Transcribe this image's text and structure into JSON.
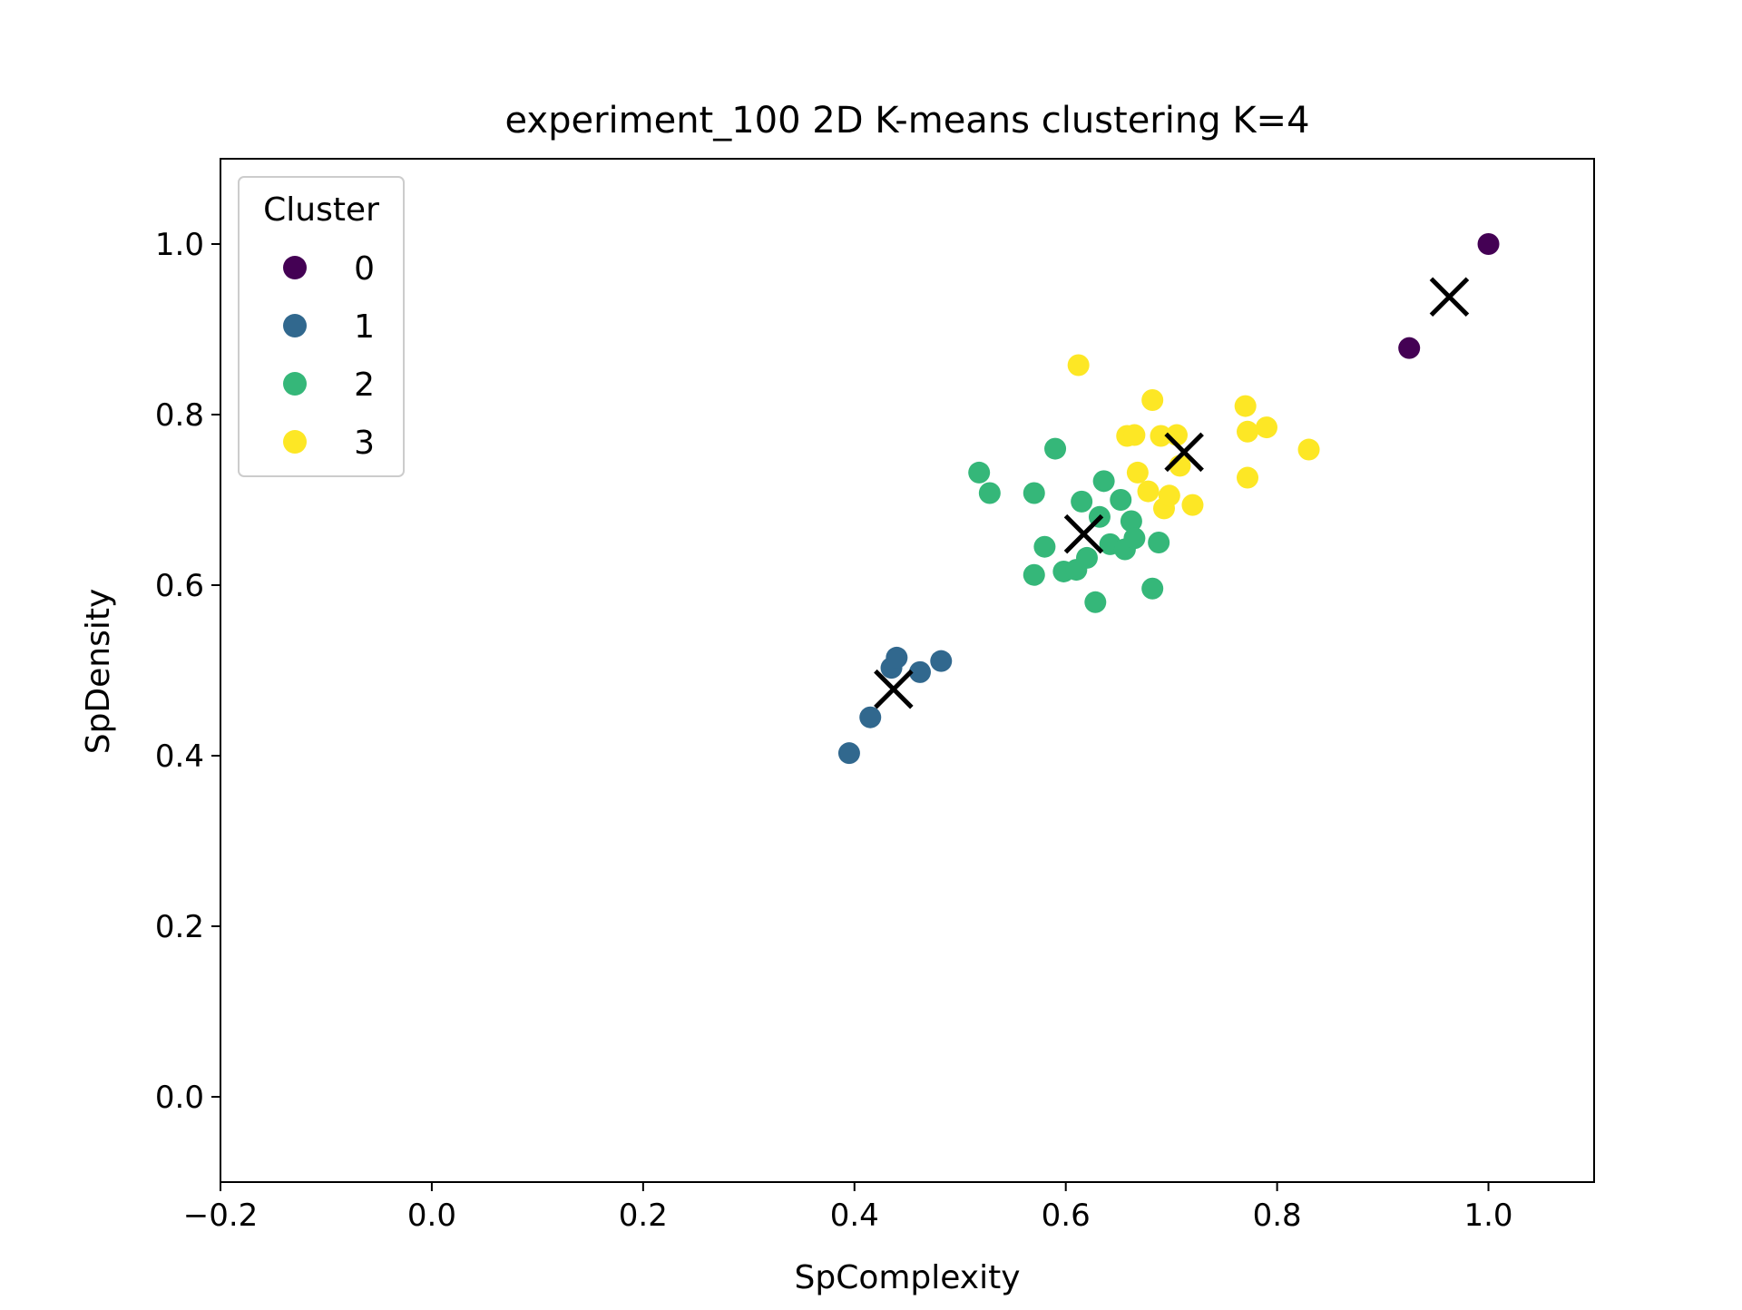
{
  "chart_data": {
    "type": "scatter",
    "title": "experiment_100 2D K-means clustering K=4",
    "xlabel": "SpComplexity",
    "ylabel": "SpDensity",
    "xlim": [
      -0.2,
      1.1
    ],
    "ylim": [
      -0.1,
      1.1
    ],
    "xticks": [
      -0.2,
      0.0,
      0.2,
      0.4,
      0.6,
      0.8,
      1.0
    ],
    "xtick_labels": [
      "−0.2",
      "0.0",
      "0.2",
      "0.4",
      "0.6",
      "0.8",
      "1.0"
    ],
    "yticks": [
      0.0,
      0.2,
      0.4,
      0.6,
      0.8,
      1.0
    ],
    "ytick_labels": [
      "0.0",
      "0.2",
      "0.4",
      "0.6",
      "0.8",
      "1.0"
    ],
    "grid": false,
    "legend": {
      "title": "Cluster",
      "placement": "top-left"
    },
    "series": [
      {
        "name": "0",
        "color": "#440154",
        "points": [
          [
            1.0,
            1.0
          ],
          [
            0.925,
            0.878
          ]
        ]
      },
      {
        "name": "1",
        "color": "#31688e",
        "points": [
          [
            0.395,
            0.403
          ],
          [
            0.415,
            0.445
          ],
          [
            0.435,
            0.503
          ],
          [
            0.44,
            0.515
          ],
          [
            0.462,
            0.498
          ],
          [
            0.482,
            0.511
          ]
        ]
      },
      {
        "name": "2",
        "color": "#35b779",
        "points": [
          [
            0.518,
            0.732
          ],
          [
            0.528,
            0.708
          ],
          [
            0.57,
            0.708
          ],
          [
            0.57,
            0.612
          ],
          [
            0.58,
            0.645
          ],
          [
            0.59,
            0.76
          ],
          [
            0.598,
            0.616
          ],
          [
            0.61,
            0.618
          ],
          [
            0.615,
            0.698
          ],
          [
            0.62,
            0.632
          ],
          [
            0.628,
            0.58
          ],
          [
            0.632,
            0.68
          ],
          [
            0.636,
            0.722
          ],
          [
            0.642,
            0.648
          ],
          [
            0.652,
            0.7
          ],
          [
            0.656,
            0.642
          ],
          [
            0.662,
            0.675
          ],
          [
            0.665,
            0.655
          ],
          [
            0.682,
            0.596
          ],
          [
            0.688,
            0.65
          ]
        ]
      },
      {
        "name": "3",
        "color": "#fde725",
        "points": [
          [
            0.612,
            0.858
          ],
          [
            0.658,
            0.775
          ],
          [
            0.665,
            0.776
          ],
          [
            0.668,
            0.732
          ],
          [
            0.678,
            0.71
          ],
          [
            0.682,
            0.817
          ],
          [
            0.69,
            0.775
          ],
          [
            0.693,
            0.69
          ],
          [
            0.698,
            0.705
          ],
          [
            0.705,
            0.776
          ],
          [
            0.708,
            0.74
          ],
          [
            0.72,
            0.694
          ],
          [
            0.77,
            0.81
          ],
          [
            0.772,
            0.78
          ],
          [
            0.772,
            0.726
          ],
          [
            0.79,
            0.785
          ],
          [
            0.83,
            0.759
          ]
        ]
      }
    ],
    "centroids": {
      "color": "#000000",
      "points": [
        [
          0.963,
          0.938
        ],
        [
          0.437,
          0.478
        ],
        [
          0.617,
          0.66
        ],
        [
          0.712,
          0.756
        ]
      ]
    }
  }
}
